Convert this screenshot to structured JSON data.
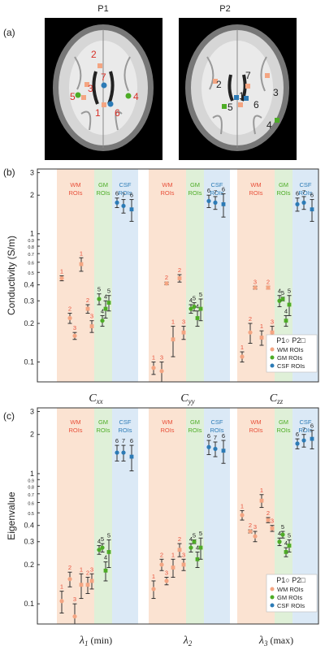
{
  "panel_a": {
    "label": "(a)",
    "images": [
      {
        "title": "P1",
        "roi_labels": [
          "2",
          "7",
          "3",
          "5",
          "4",
          "1",
          "6"
        ]
      },
      {
        "title": "P2",
        "roi_labels": [
          "2",
          "7",
          "3",
          "1",
          "6",
          "5",
          "4"
        ]
      }
    ]
  },
  "legend": {
    "shape_label": "P1○ P2□",
    "items": [
      {
        "name": "WM ROIs",
        "color": "#f4a582"
      },
      {
        "name": "GM ROIs",
        "color": "#4dac26"
      },
      {
        "name": "CSF ROIs",
        "color": "#2c7bb6"
      }
    ]
  },
  "colors": {
    "wm": "#f4a582",
    "gm": "#4dac26",
    "csf": "#2c7bb6",
    "wm_label": "#e8503a",
    "wm_band": "#fbe3d2",
    "gm_band": "#dff0d8",
    "csf_band": "#dbe9f6"
  },
  "chart_data": [
    {
      "panel_label": "(b)",
      "type": "scatter",
      "ylabel": "Conductivity (S/m)",
      "yscale": "log",
      "ylim": [
        0.07,
        3.2
      ],
      "yticks": [
        {
          "v": 0.1,
          "t": "0.1"
        },
        {
          "v": 0.2,
          "t": "0.2"
        },
        {
          "v": 0.3,
          "t": "0.3"
        },
        {
          "v": 0.4,
          "t": "0.4"
        },
        {
          "v": 0.5,
          "t": "0.5"
        },
        {
          "v": 0.6,
          "t": "0.6"
        },
        {
          "v": 0.7,
          "t": "0.7"
        },
        {
          "v": 0.8,
          "t": "0.8"
        },
        {
          "v": 0.9,
          "t": "0.9"
        },
        {
          "v": 1,
          "t": "1"
        },
        {
          "v": 2,
          "t": "2"
        },
        {
          "v": 3,
          "t": "3"
        }
      ],
      "band_labels": {
        "wm": [
          "WM",
          "ROIs"
        ],
        "gm": [
          "GM",
          "ROIs"
        ],
        "csf": [
          "CSF",
          "ROIs"
        ]
      },
      "groups": [
        {
          "label": "C",
          "sub": "xx",
          "points": [
            {
              "roi": "1",
              "type": "wm",
              "p": 1,
              "y": 0.45,
              "err": 0.02
            },
            {
              "roi": "2",
              "type": "wm",
              "p": 1,
              "y": 0.22,
              "err": 0.02
            },
            {
              "roi": "3",
              "type": "wm",
              "p": 1,
              "y": 0.16,
              "err": 0.01
            },
            {
              "roi": "1",
              "type": "wm",
              "p": 2,
              "y": 0.58,
              "err": 0.07
            },
            {
              "roi": "2",
              "type": "wm",
              "p": 2,
              "y": 0.26,
              "err": 0.02
            },
            {
              "roi": "3",
              "type": "wm",
              "p": 2,
              "y": 0.19,
              "err": 0.02
            },
            {
              "roi": "5",
              "type": "gm",
              "p": 1,
              "y": 0.31,
              "err": 0.03
            },
            {
              "roi": "4",
              "type": "gm",
              "p": 1,
              "y": 0.21,
              "err": 0.02
            },
            {
              "roi": "4",
              "type": "gm",
              "p": 2,
              "y": 0.26,
              "err": 0.04
            },
            {
              "roi": "5",
              "type": "gm",
              "p": 2,
              "y": 0.29,
              "err": 0.04
            },
            {
              "roi": "6",
              "type": "csf",
              "p": 1,
              "y": 1.75,
              "err": 0.15
            },
            {
              "roi": "7",
              "type": "csf",
              "p": 1,
              "y": 1.65,
              "err": 0.2
            },
            {
              "roi": "6",
              "type": "csf",
              "p": 2,
              "y": 1.55,
              "err": 0.3
            }
          ]
        },
        {
          "label": "C",
          "sub": "yy",
          "points": [
            {
              "roi": "1",
              "type": "wm",
              "p": 1,
              "y": 0.09,
              "err": 0.01
            },
            {
              "roi": "3",
              "type": "wm",
              "p": 1,
              "y": 0.085,
              "err": 0.015
            },
            {
              "roi": "2",
              "type": "wm",
              "p": 1,
              "y": 0.41,
              "err": 0.01
            },
            {
              "roi": "1",
              "type": "wm",
              "p": 2,
              "y": 0.15,
              "err": 0.04
            },
            {
              "roi": "2",
              "type": "wm",
              "p": 2,
              "y": 0.45,
              "err": 0.03
            },
            {
              "roi": "3",
              "type": "wm",
              "p": 2,
              "y": 0.17,
              "err": 0.02
            },
            {
              "roi": "4",
              "type": "gm",
              "p": 1,
              "y": 0.26,
              "err": 0.02
            },
            {
              "roi": "5",
              "type": "gm",
              "p": 1,
              "y": 0.27,
              "err": 0.02
            },
            {
              "roi": "4",
              "type": "gm",
              "p": 2,
              "y": 0.22,
              "err": 0.03
            },
            {
              "roi": "5",
              "type": "gm",
              "p": 2,
              "y": 0.26,
              "err": 0.05
            },
            {
              "roi": "6",
              "type": "csf",
              "p": 1,
              "y": 1.8,
              "err": 0.2
            },
            {
              "roi": "7",
              "type": "csf",
              "p": 1,
              "y": 1.75,
              "err": 0.2
            },
            {
              "roi": "6",
              "type": "csf",
              "p": 2,
              "y": 1.7,
              "err": 0.35
            }
          ]
        },
        {
          "label": "C",
          "sub": "zz",
          "points": [
            {
              "roi": "1",
              "type": "wm",
              "p": 1,
              "y": 0.11,
              "err": 0.01
            },
            {
              "roi": "2",
              "type": "wm",
              "p": 1,
              "y": 0.17,
              "err": 0.03
            },
            {
              "roi": "3",
              "type": "wm",
              "p": 1,
              "y": 0.38,
              "err": 0.01
            },
            {
              "roi": "1",
              "type": "wm",
              "p": 2,
              "y": 0.155,
              "err": 0.02
            },
            {
              "roi": "2",
              "type": "wm",
              "p": 2,
              "y": 0.38,
              "err": 0.01
            },
            {
              "roi": "3",
              "type": "wm",
              "p": 2,
              "y": 0.17,
              "err": 0.02
            },
            {
              "roi": "4",
              "type": "gm",
              "p": 1,
              "y": 0.3,
              "err": 0.03
            },
            {
              "roi": "5",
              "type": "gm",
              "p": 1,
              "y": 0.31,
              "err": 0.01
            },
            {
              "roi": "4",
              "type": "gm",
              "p": 2,
              "y": 0.21,
              "err": 0.02
            },
            {
              "roi": "5",
              "type": "gm",
              "p": 2,
              "y": 0.28,
              "err": 0.05
            },
            {
              "roi": "6",
              "type": "csf",
              "p": 1,
              "y": 1.7,
              "err": 0.2
            },
            {
              "roi": "7",
              "type": "csf",
              "p": 1,
              "y": 1.75,
              "err": 0.2
            },
            {
              "roi": "6",
              "type": "csf",
              "p": 2,
              "y": 1.55,
              "err": 0.3
            }
          ]
        }
      ]
    },
    {
      "panel_label": "(c)",
      "type": "scatter",
      "ylabel": "Eigenvalue",
      "yscale": "log",
      "ylim": [
        0.07,
        3.2
      ],
      "yticks": [
        {
          "v": 0.1,
          "t": "0.1"
        },
        {
          "v": 0.2,
          "t": "0.2"
        },
        {
          "v": 0.3,
          "t": "0.3"
        },
        {
          "v": 0.4,
          "t": "0.4"
        },
        {
          "v": 0.5,
          "t": "0.5"
        },
        {
          "v": 0.6,
          "t": "0.6"
        },
        {
          "v": 0.7,
          "t": "0.7"
        },
        {
          "v": 0.8,
          "t": "0.8"
        },
        {
          "v": 0.9,
          "t": "0.9"
        },
        {
          "v": 1,
          "t": "1"
        },
        {
          "v": 2,
          "t": "2"
        },
        {
          "v": 3,
          "t": "3"
        }
      ],
      "band_labels": {
        "wm": [
          "WM",
          "ROIs"
        ],
        "gm": [
          "GM",
          "ROIs"
        ],
        "csf": [
          "CSF",
          "ROIs"
        ]
      },
      "groups": [
        {
          "label": "λ",
          "sub": "1",
          "suffix": " (min)",
          "points": [
            {
              "roi": "1",
              "type": "wm",
              "p": 1,
              "y": 0.105,
              "err": 0.02
            },
            {
              "roi": "2",
              "type": "wm",
              "p": 1,
              "y": 0.155,
              "err": 0.02
            },
            {
              "roi": "3",
              "type": "wm",
              "p": 1,
              "y": 0.08,
              "err": 0.02
            },
            {
              "roi": "1",
              "type": "wm",
              "p": 2,
              "y": 0.14,
              "err": 0.03
            },
            {
              "roi": "2",
              "type": "wm",
              "p": 2,
              "y": 0.14,
              "err": 0.02
            },
            {
              "roi": "3",
              "type": "wm",
              "p": 2,
              "y": 0.15,
              "err": 0.02
            },
            {
              "roi": "4",
              "type": "gm",
              "p": 1,
              "y": 0.26,
              "err": 0.02
            },
            {
              "roi": "5",
              "type": "gm",
              "p": 1,
              "y": 0.27,
              "err": 0.02
            },
            {
              "roi": "4",
              "type": "gm",
              "p": 2,
              "y": 0.18,
              "err": 0.03
            },
            {
              "roi": "5",
              "type": "gm",
              "p": 2,
              "y": 0.25,
              "err": 0.06
            },
            {
              "roi": "6",
              "type": "csf",
              "p": 1,
              "y": 1.45,
              "err": 0.2
            },
            {
              "roi": "7",
              "type": "csf",
              "p": 1,
              "y": 1.45,
              "err": 0.2
            },
            {
              "roi": "6",
              "type": "csf",
              "p": 2,
              "y": 1.35,
              "err": 0.3
            }
          ]
        },
        {
          "label": "λ",
          "sub": "2",
          "suffix": "",
          "points": [
            {
              "roi": "1",
              "type": "wm",
              "p": 1,
              "y": 0.13,
              "err": 0.02
            },
            {
              "roi": "2",
              "type": "wm",
              "p": 1,
              "y": 0.2,
              "err": 0.02
            },
            {
              "roi": "3",
              "type": "wm",
              "p": 1,
              "y": 0.15,
              "err": 0.01
            },
            {
              "roi": "1",
              "type": "wm",
              "p": 2,
              "y": 0.19,
              "err": 0.03
            },
            {
              "roi": "2",
              "type": "wm",
              "p": 2,
              "y": 0.26,
              "err": 0.03
            },
            {
              "roi": "3",
              "type": "wm",
              "p": 2,
              "y": 0.2,
              "err": 0.02
            },
            {
              "roi": "4",
              "type": "gm",
              "p": 1,
              "y": 0.27,
              "err": 0.02
            },
            {
              "roi": "5",
              "type": "gm",
              "p": 1,
              "y": 0.3,
              "err": 0.01
            },
            {
              "roi": "4",
              "type": "gm",
              "p": 2,
              "y": 0.22,
              "err": 0.03
            },
            {
              "roi": "5",
              "type": "gm",
              "p": 2,
              "y": 0.27,
              "err": 0.05
            },
            {
              "roi": "6",
              "type": "csf",
              "p": 1,
              "y": 1.6,
              "err": 0.2
            },
            {
              "roi": "7",
              "type": "csf",
              "p": 1,
              "y": 1.55,
              "err": 0.2
            },
            {
              "roi": "6",
              "type": "csf",
              "p": 2,
              "y": 1.5,
              "err": 0.3
            }
          ]
        },
        {
          "label": "λ",
          "sub": "3",
          "suffix": " (max)",
          "points": [
            {
              "roi": "1",
              "type": "wm",
              "p": 1,
              "y": 0.48,
              "err": 0.04
            },
            {
              "roi": "2",
              "type": "wm",
              "p": 1,
              "y": 0.36,
              "err": 0.01
            },
            {
              "roi": "3",
              "type": "wm",
              "p": 1,
              "y": 0.33,
              "err": 0.03
            },
            {
              "roi": "1",
              "type": "wm",
              "p": 2,
              "y": 0.62,
              "err": 0.07
            },
            {
              "roi": "2",
              "type": "wm",
              "p": 2,
              "y": 0.44,
              "err": 0.02
            },
            {
              "roi": "3",
              "type": "wm",
              "p": 2,
              "y": 0.38,
              "err": 0.02
            },
            {
              "roi": "4",
              "type": "gm",
              "p": 1,
              "y": 0.3,
              "err": 0.02
            },
            {
              "roi": "5",
              "type": "gm",
              "p": 1,
              "y": 0.34,
              "err": 0.02
            },
            {
              "roi": "4",
              "type": "gm",
              "p": 2,
              "y": 0.25,
              "err": 0.02
            },
            {
              "roi": "5",
              "type": "gm",
              "p": 2,
              "y": 0.28,
              "err": 0.03
            },
            {
              "roi": "6",
              "type": "csf",
              "p": 1,
              "y": 1.7,
              "err": 0.15
            },
            {
              "roi": "7",
              "type": "csf",
              "p": 1,
              "y": 1.8,
              "err": 0.2
            },
            {
              "roi": "6",
              "type": "csf",
              "p": 2,
              "y": 1.85,
              "err": 0.3
            }
          ]
        }
      ]
    }
  ]
}
